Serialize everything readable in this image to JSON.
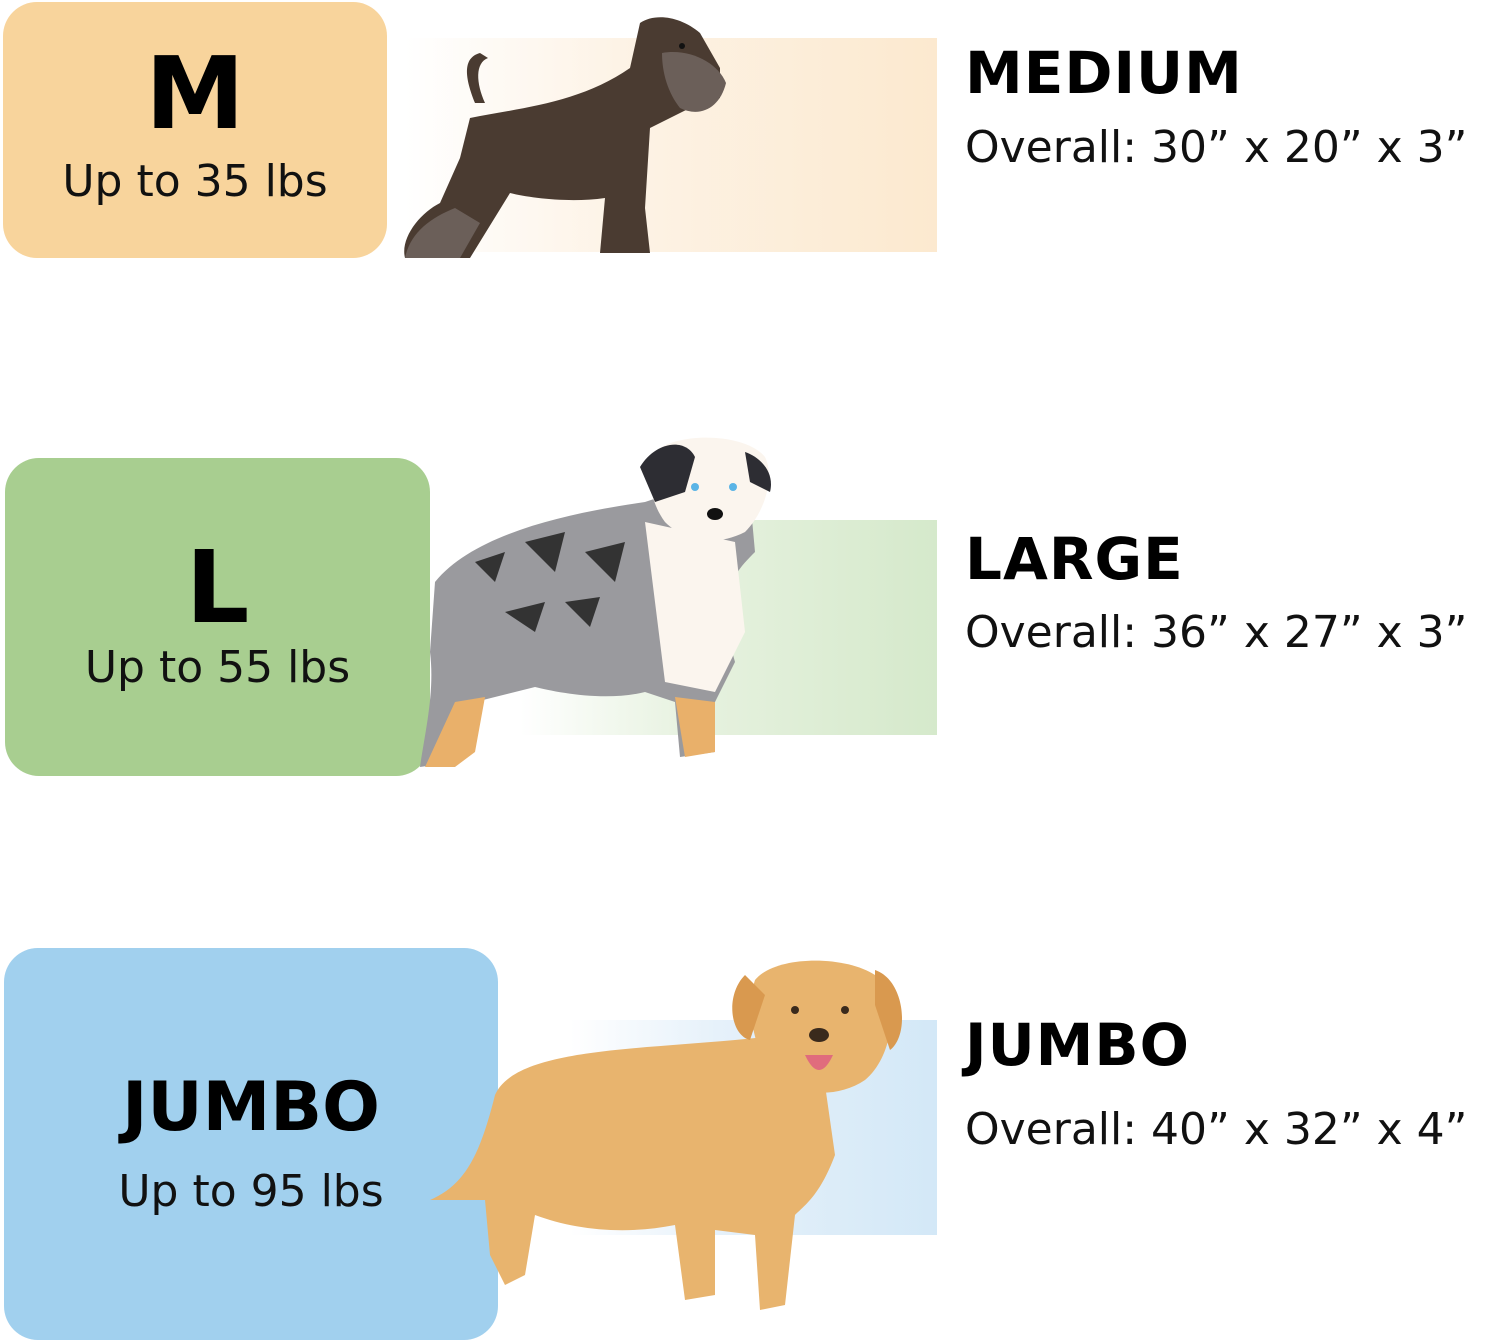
{
  "colors": {
    "medium": "#F8D49C",
    "large": "#A8CE90",
    "jumbo": "#A1D0EE"
  },
  "sizes": [
    {
      "badge": "M",
      "weight": "Up to 35 lbs",
      "name": "MEDIUM",
      "dimensions": "Overall: 30” x 20” x 3”",
      "dog_icon": "schnauzer-icon"
    },
    {
      "badge": "L",
      "weight": "Up to 55 lbs",
      "name": "LARGE",
      "dimensions": "Overall: 36” x 27” x 3”",
      "dog_icon": "australian-shepherd-icon"
    },
    {
      "badge": "JUMBO",
      "weight": "Up to 95 lbs",
      "name": "JUMBO",
      "dimensions": "Overall: 40” x 32” x 4”",
      "dog_icon": "golden-retriever-icon"
    }
  ]
}
